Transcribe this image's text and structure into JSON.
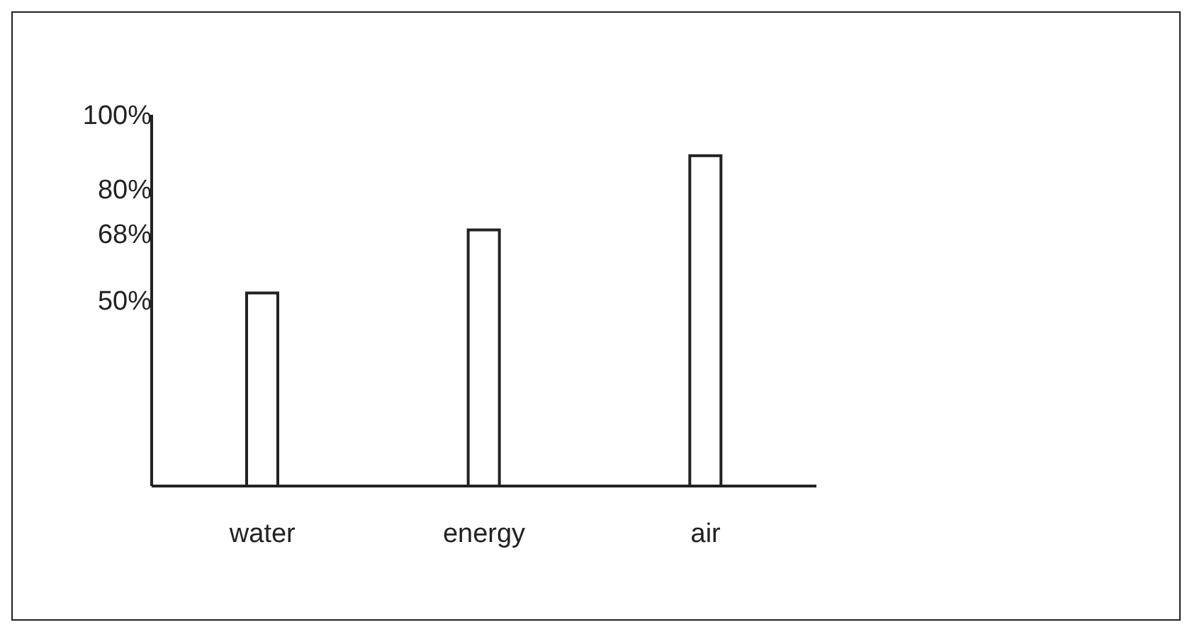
{
  "chart_data": {
    "type": "bar",
    "categories": [
      "water",
      "energy",
      "air"
    ],
    "series": [
      {
        "color": "#ffffff",
        "values": [
          52,
          69,
          89
        ]
      }
    ],
    "ylim": [
      0,
      100
    ],
    "yticks": [
      {
        "value": 100,
        "label": "100%"
      },
      {
        "value": 80,
        "label": "80%"
      },
      {
        "value": 68,
        "label": "68%"
      },
      {
        "value": 50,
        "label": "50%"
      }
    ],
    "grid": false,
    "legend": false
  }
}
